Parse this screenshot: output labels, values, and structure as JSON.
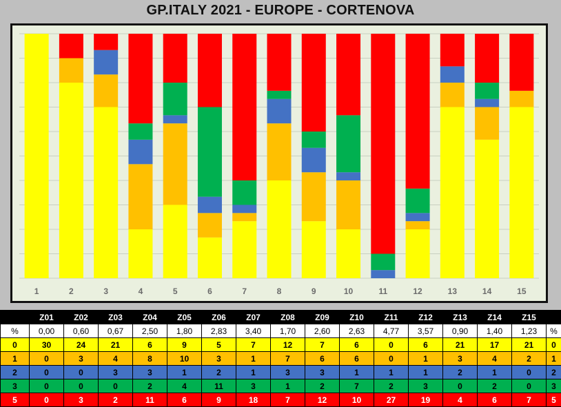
{
  "title": "GP.ITALY 2021 - EUROPE - CORTENOVA",
  "colors": {
    "0": "#ffff00",
    "1": "#ffc000",
    "2": "#4472c4",
    "3": "#00b050",
    "5": "#ff0000",
    "plot_bg": "#eaf0df",
    "grid": "#c8cfc0"
  },
  "table": {
    "corner": "",
    "header": [
      "Z01",
      "Z02",
      "Z03",
      "Z04",
      "Z05",
      "Z06",
      "Z07",
      "Z08",
      "Z09",
      "Z10",
      "Z11",
      "Z12",
      "Z13",
      "Z14",
      "Z15"
    ],
    "pct_label": "%",
    "pct_values": [
      "0,00",
      "0,60",
      "0,67",
      "2,50",
      "1,80",
      "2,83",
      "3,40",
      "1,70",
      "2,60",
      "2,63",
      "4,77",
      "3,57",
      "0,90",
      "1,40",
      "1,23"
    ],
    "rows": [
      {
        "label": "0",
        "values": [
          "30",
          "24",
          "21",
          "6",
          "9",
          "5",
          "7",
          "12",
          "7",
          "6",
          "0",
          "6",
          "21",
          "17",
          "21"
        ],
        "pct": "0"
      },
      {
        "label": "1",
        "values": [
          "0",
          "3",
          "4",
          "8",
          "10",
          "3",
          "1",
          "7",
          "6",
          "6",
          "0",
          "1",
          "3",
          "4",
          "2"
        ],
        "pct": "1"
      },
      {
        "label": "2",
        "values": [
          "0",
          "0",
          "3",
          "3",
          "1",
          "2",
          "1",
          "3",
          "3",
          "1",
          "1",
          "1",
          "2",
          "1",
          "0"
        ],
        "pct": "2"
      },
      {
        "label": "3",
        "values": [
          "0",
          "0",
          "0",
          "2",
          "4",
          "11",
          "3",
          "1",
          "2",
          "7",
          "2",
          "3",
          "0",
          "2",
          "0"
        ],
        "pct": "3"
      },
      {
        "label": "5",
        "values": [
          "0",
          "3",
          "2",
          "11",
          "6",
          "9",
          "18",
          "7",
          "12",
          "10",
          "27",
          "19",
          "4",
          "6",
          "7"
        ],
        "pct": "5"
      }
    ]
  },
  "chart_data": {
    "type": "bar",
    "stacked": true,
    "title": "GP.ITALY 2021 - EUROPE - CORTENOVA",
    "categories": [
      "1",
      "2",
      "3",
      "4",
      "5",
      "6",
      "7",
      "8",
      "9",
      "10",
      "11",
      "12",
      "13",
      "14",
      "15"
    ],
    "ylim": [
      0,
      30
    ],
    "grid": true,
    "legend": "none",
    "series": [
      {
        "key": "0",
        "values": [
          30,
          24,
          21,
          6,
          9,
          5,
          7,
          12,
          7,
          6,
          0,
          6,
          21,
          17,
          21
        ]
      },
      {
        "key": "1",
        "values": [
          0,
          3,
          4,
          8,
          10,
          3,
          1,
          7,
          6,
          6,
          0,
          1,
          3,
          4,
          2
        ]
      },
      {
        "key": "2",
        "values": [
          0,
          0,
          3,
          3,
          1,
          2,
          1,
          3,
          3,
          1,
          1,
          1,
          2,
          1,
          0
        ]
      },
      {
        "key": "3",
        "values": [
          0,
          0,
          0,
          2,
          4,
          11,
          3,
          1,
          2,
          7,
          2,
          3,
          0,
          2,
          0
        ]
      },
      {
        "key": "5",
        "values": [
          0,
          3,
          2,
          11,
          6,
          9,
          18,
          7,
          12,
          10,
          27,
          19,
          4,
          6,
          7
        ]
      }
    ]
  }
}
